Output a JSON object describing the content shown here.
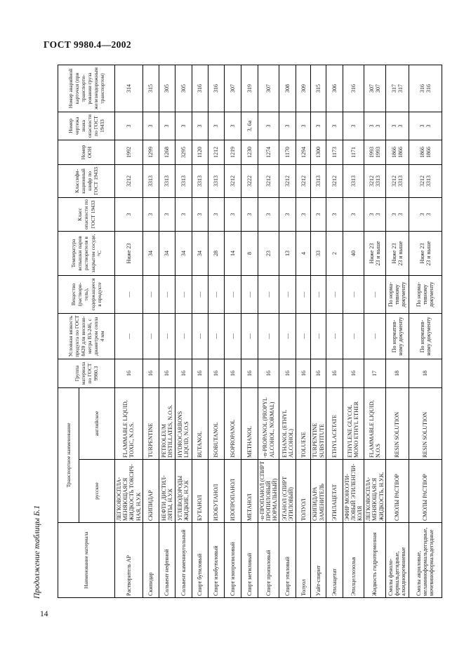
{
  "page": {
    "doc_header": "ГОСТ 9980.4—2002",
    "table_caption": "Продолжение таблицы Б.1",
    "page_number": "14"
  },
  "table": {
    "headers": {
      "material": "Наименование материала",
      "transport": "Транспортное наименование",
      "transport_ru": "русское",
      "transport_en": "английское",
      "group": "Группа материа­ла по ГОСТ 9980.3",
      "viscosity": "Условная вязкость продукта по ГОСТ 8420 для вискози­метра В3-246, с диаметром сопла 4 мм",
      "substance": "Вещество (раствори­тель), содержащее­ся в продукте",
      "flash_temp": "Температура вспышки паров растворителя в закрытом сосуде, °С",
      "hazard_class": "Класс опаснос­ти по ГОСТ 19433",
      "class_code": "Классифи­кационный шифр по ГОСТ 19433",
      "un_number": "Номер ООН",
      "danger_sign": "Номер чертежа знака опасно­сти по ГОСТ 19433",
      "emergency_card": "Номер аварийной карточки (при транспорти­ровании груза железнодо­рожным транспортом)"
    },
    "rows": [
      {
        "material": "Растворитель АР",
        "name_ru": "ЛЕГКОВОСПЛА­МЕНЯЮЩАЯСЯ ЖИДКОСТЬ ТОКСИЧ­НАЯ, Н.У.К",
        "name_en": "FLAMMABLE LIQUID, TOXIC, N.O.S.",
        "group": "16",
        "viscosity": "—",
        "substance": "—",
        "flash_temp": "Ниже 23",
        "hazard_class": "3",
        "class_code": "3212",
        "un_number": "1992",
        "danger_sign": "3",
        "emergency_card": "314"
      },
      {
        "material": "Скипидар",
        "name_ru": "СКИПИДАР",
        "name_en": "TURPENTINE",
        "group": "16",
        "viscosity": "—",
        "substance": "—",
        "flash_temp": "34",
        "hazard_class": "3",
        "class_code": "3313",
        "un_number": "1299",
        "danger_sign": "3",
        "emergency_card": "315"
      },
      {
        "material": "Сольвент нефтя­ной",
        "name_ru": "НЕФТИ ДИСТИЛ­ЛЯТЫ, Н.У.К",
        "name_en": "PETROLEUM DISTILLATES, N.O.S.",
        "group": "16",
        "viscosity": "—",
        "substance": "—",
        "flash_temp": "34",
        "hazard_class": "3",
        "class_code": "3313",
        "un_number": "1268",
        "danger_sign": "3",
        "emergency_card": "305"
      },
      {
        "material": "Сольвент камен­ноугольный",
        "name_ru": "УГЛЕВОДОРОДЫ ЖИДКИЕ, Н.У.К",
        "name_en": "HYDROCARBONS LIQUID, N.O.S",
        "group": "16",
        "viscosity": "—",
        "substance": "—",
        "flash_temp": "34",
        "hazard_class": "3",
        "class_code": "3313",
        "un_number": "3295",
        "danger_sign": "3",
        "emergency_card": "305"
      },
      {
        "material": "Спирт бутило­вый",
        "name_ru": "БУТАНОЛ",
        "name_en": "BUTANOL",
        "group": "16",
        "viscosity": "—",
        "substance": "—",
        "flash_temp": "34",
        "hazard_class": "3",
        "class_code": "3313",
        "un_number": "1120",
        "danger_sign": "3",
        "emergency_card": "316"
      },
      {
        "material": "Спирт изобути­ловый",
        "name_ru": "ИЗОБУТАНОЛ",
        "name_en": "ISOBUTANOL",
        "group": "16",
        "viscosity": "—",
        "substance": "—",
        "flash_temp": "28",
        "hazard_class": "3",
        "class_code": "3313",
        "un_number": "1212",
        "danger_sign": "3",
        "emergency_card": "316"
      },
      {
        "material": "Спирт изопро­пиловый",
        "name_ru": "ИЗОПРОПАНОЛ",
        "name_en": "ISOPROPANOL",
        "group": "16",
        "viscosity": "—",
        "substance": "—",
        "flash_temp": "14",
        "hazard_class": "3",
        "class_code": "3212",
        "un_number": "1219",
        "danger_sign": "3",
        "emergency_card": "307"
      },
      {
        "material": "Спирт метило­вый",
        "name_ru": "МЕТАНОЛ",
        "name_en": "METHANOL",
        "group": "16",
        "viscosity": "—",
        "substance": "—",
        "flash_temp": "8",
        "hazard_class": "3",
        "class_code": "3222",
        "un_number": "1230",
        "danger_sign": "3, 6а",
        "emergency_card": "319"
      },
      {
        "material": "Спирт пропило­вый",
        "name_ru": "-н-ПРОПАНОЛ (СПИРТ ПРОПИЛО­ВЫЙ НОРМАЛЬНЫЙ)",
        "name_en": "-n-PROPANOL (PROPYL ALCOHOL, NORMAL)",
        "group": "16",
        "viscosity": "—",
        "substance": "—",
        "flash_temp": "23",
        "hazard_class": "3",
        "class_code": "3212",
        "un_number": "1274",
        "danger_sign": "3",
        "emergency_card": "307"
      },
      {
        "material": "Спирт этиловый",
        "name_ru": "ЭТАНОЛ (СПИРТ ЭТИЛОВЫЙ)",
        "name_en": "ETHANOL (ETHYL ALCOHOL)",
        "group": "16",
        "viscosity": "—",
        "substance": "—",
        "flash_temp": "13",
        "hazard_class": "3",
        "class_code": "3212",
        "un_number": "1170",
        "danger_sign": "3",
        "emergency_card": "308"
      },
      {
        "material": "Толуол",
        "name_ru": "ТОЛУОЛ",
        "name_en": "TOLUENE",
        "group": "16",
        "viscosity": "—",
        "substance": "—",
        "flash_temp": "4",
        "hazard_class": "3",
        "class_code": "3212",
        "un_number": "1294",
        "danger_sign": "3",
        "emergency_card": "309"
      },
      {
        "material": "Уайт-спирит",
        "name_ru": "СКИПИДАРА ЗАМЕНИТЕЛЬ",
        "name_en": "TURPENTINE SUBSTITUTE",
        "group": "16",
        "viscosity": "—",
        "substance": "—",
        "flash_temp": "33",
        "hazard_class": "3",
        "class_code": "3313",
        "un_number": "1300",
        "danger_sign": "3",
        "emergency_card": "315"
      },
      {
        "material": "Этилацетат",
        "name_ru": "ЭТИЛАЦЕТАТ",
        "name_en": "ETHYLACETATE",
        "group": "16",
        "viscosity": "—",
        "substance": "—",
        "flash_temp": "2",
        "hazard_class": "3",
        "class_code": "3212",
        "un_number": "1173",
        "danger_sign": "3",
        "emergency_card": "306"
      },
      {
        "material": "Этилцеллозольв",
        "name_ru": "ЭФИР МОНОЭТИ­ЛОВЫЙ ЭТИЛЕНГЛИ­КОЛЯ",
        "name_en": "ETHYLENE GLYCOL MONO ETHYL ETHER",
        "group": "16",
        "viscosity": "—",
        "substance": "—",
        "flash_temp": "40",
        "hazard_class": "3",
        "class_code": "3313",
        "un_number": "1171",
        "danger_sign": "3",
        "emergency_card": "316"
      },
      {
        "material": "Жидкость гидро­тормозная",
        "name_ru": "ЛЕГКОВОСПЛА­МЕНЯЮЩАЯСЯ ЖИДКОСТЬ, Н.У.К.",
        "name_en": "FLAMMABLE LIQUID, N.O.S",
        "group": "17",
        "viscosity": "—",
        "substance": "—",
        "flash_temp": "Ниже 23\n23 и выше",
        "hazard_class": "3\n3",
        "class_code": "3212\n3313",
        "un_number": "1993\n1993",
        "danger_sign": "3\n3",
        "emergency_card": "307\n307"
      },
      {
        "material": "Смолы феноло­формальдегидные, алкиднокремниевые",
        "name_ru": "СМОЛЫ РАСТВОР",
        "name_en": "RESIN SOLUTION",
        "group": "18",
        "viscosity": "По норматив­ному документу",
        "substance": "По норма­тивному документу",
        "flash_temp": "Ниже 23\n23 и выше",
        "hazard_class": "3\n3",
        "class_code": "3212\n3313",
        "un_number": "1866\n1866",
        "danger_sign": "3\n3",
        "emergency_card": "317\n317"
      },
      {
        "material": "Смолы акрило­вые, меламинофор­мальдегидные, моче­виноформальдегид­ные",
        "name_ru": "СМОЛЫ РАСТВОР",
        "name_en": "RESIN SOLUTION",
        "group": "18",
        "viscosity": "По норматив­ному документу",
        "substance": "По норма­тивному документу",
        "flash_temp": "Ниже 23\n23 и выше",
        "hazard_class": "3\n3",
        "class_code": "3212\n3313",
        "un_number": "1866\n1866",
        "danger_sign": "3\n3",
        "emergency_card": "316\n316"
      }
    ]
  }
}
